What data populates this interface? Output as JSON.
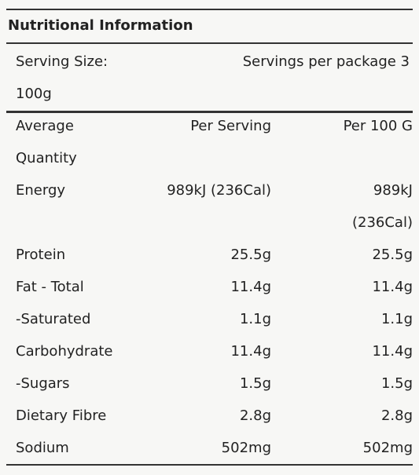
{
  "title": "Nutritional Information",
  "serving": {
    "size_label": "Serving Size:",
    "size": "100g",
    "servings": "Servings per package 3"
  },
  "table": {
    "header": [
      "Average Quantity",
      "Per Serving",
      "Per 100 G"
    ],
    "rows": [
      [
        "Energy",
        "989kJ (236Cal)",
        "989kJ (236Cal)"
      ],
      [
        "Protein",
        "25.5g",
        "25.5g"
      ],
      [
        "Fat - Total",
        "11.4g",
        "11.4g"
      ],
      [
        "-Saturated",
        "1.1g",
        "1.1g"
      ],
      [
        "Carbohydrate",
        "11.4g",
        "11.4g"
      ],
      [
        "-Sugars",
        "1.5g",
        "1.5g"
      ],
      [
        "Dietary Fibre",
        "2.8g",
        "2.8g"
      ],
      [
        "Sodium",
        "502mg",
        "502mg"
      ]
    ]
  }
}
